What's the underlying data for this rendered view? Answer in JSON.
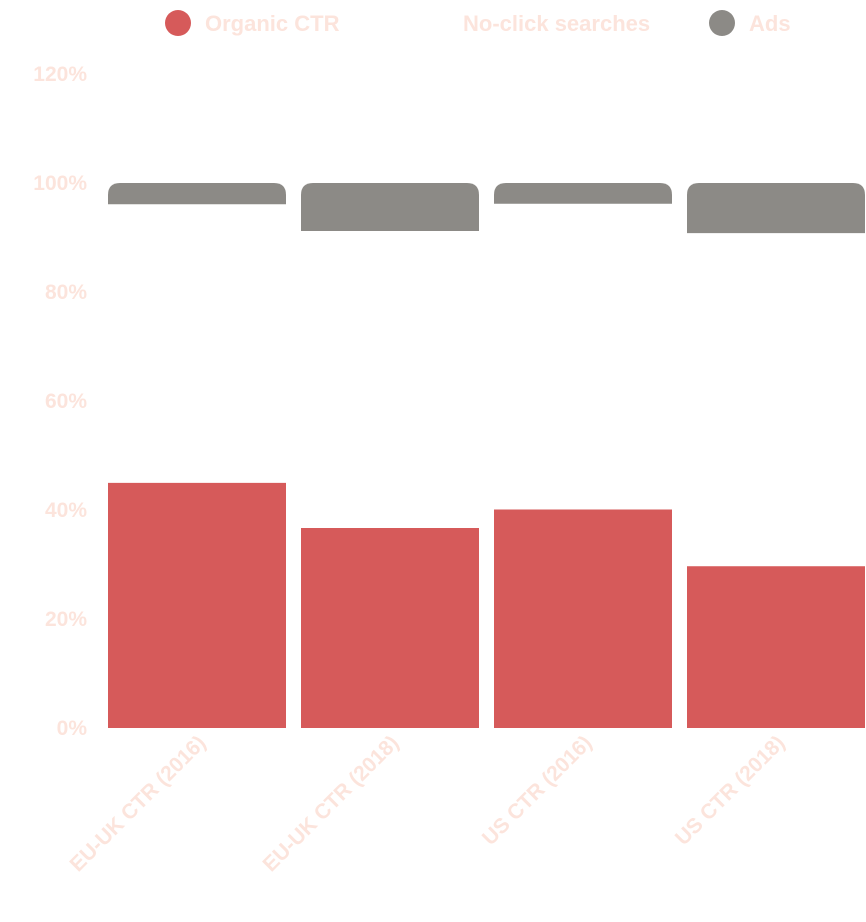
{
  "chart_data": {
    "type": "bar",
    "stacked": true,
    "categories": [
      "EU-UK CTR (2016)",
      "EU-UK CTR (2018)",
      "US CTR (2016)",
      "US CTR (2018)"
    ],
    "series": [
      {
        "name": "Organic CTR",
        "color": "#d65a5a",
        "values": [
          45,
          36.7,
          40.1,
          29.7
        ]
      },
      {
        "name": "No-click searches",
        "color": "#ffffff",
        "values": [
          51.1,
          54.5,
          56.1,
          61.1
        ]
      },
      {
        "name": "Ads",
        "color": "#8c8a86",
        "values": [
          3.9,
          8.8,
          3.8,
          9.2
        ]
      }
    ],
    "yticks": [
      "0%",
      "20%",
      "40%",
      "60%",
      "80%",
      "100%",
      "120%"
    ],
    "ylim": [
      0,
      120
    ],
    "legend_position": "top",
    "label_color": "#fce4dc",
    "legend_text_color": "#fce4dc",
    "grid": false
  }
}
